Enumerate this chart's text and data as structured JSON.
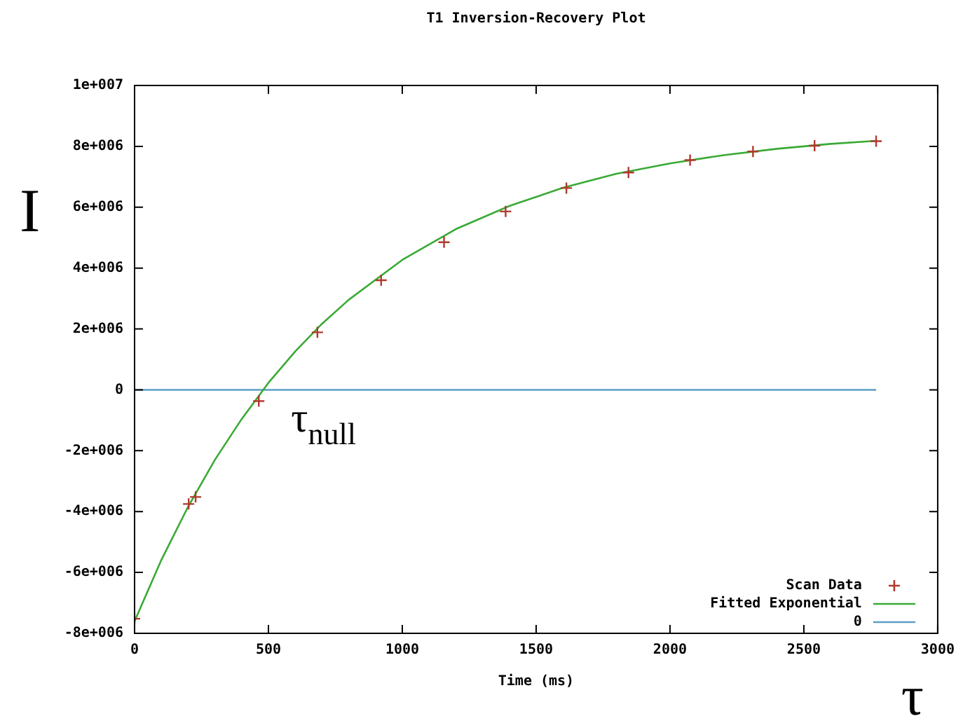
{
  "chart_data": {
    "type": "scatter",
    "title": "T1 Inversion-Recovery Plot",
    "xlabel": "Time (ms)",
    "ylabel": "I",
    "xlim": [
      0,
      3000
    ],
    "xticks": [
      0,
      500,
      1000,
      1500,
      2000,
      2500,
      3000
    ],
    "ylim": [
      -8000000,
      10000000
    ],
    "yticks": [
      {
        "value": -8000000,
        "label": "-8e+006"
      },
      {
        "value": -6000000,
        "label": "-6e+006"
      },
      {
        "value": -4000000,
        "label": "-4e+006"
      },
      {
        "value": -2000000,
        "label": "-2e+006"
      },
      0,
      {
        "value": 2000000,
        "label": "2e+006"
      },
      {
        "value": 4000000,
        "label": "4e+006"
      },
      {
        "value": 6000000,
        "label": "6e+006"
      },
      {
        "value": 8000000,
        "label": "8e+006"
      },
      {
        "value": 10000000,
        "label": "1e+007"
      }
    ],
    "grid": false,
    "legend": "bottom right",
    "series": [
      {
        "name": "Scan Data",
        "marker": "cross",
        "color": "#b03a2e",
        "x": [
          0,
          202,
          228,
          464,
          683,
          921,
          1156,
          1386,
          1613,
          1845,
          2075,
          2310,
          2540,
          2770
        ],
        "values": [
          -7520000,
          -3750000,
          -3520000,
          -370000,
          1890000,
          3600000,
          4850000,
          5860000,
          6630000,
          7140000,
          7550000,
          7830000,
          8020000,
          8170000
        ]
      },
      {
        "name": "Fitted Exponential",
        "type": "line",
        "marker": "none",
        "color": "#3aaa35",
        "x": [
          0,
          100,
          200,
          300,
          400,
          500,
          600,
          700,
          800,
          1000,
          1200,
          1400,
          1600,
          1800,
          2000,
          2200,
          2400,
          2600,
          2770
        ],
        "values": [
          -7600000,
          -5590000,
          -3840000,
          -2300000,
          -960000,
          230000,
          1260000,
          2170000,
          2960000,
          4270000,
          5280000,
          6040000,
          6640000,
          7100000,
          7440000,
          7710000,
          7920000,
          8080000,
          8180000
        ]
      },
      {
        "name": "0",
        "type": "line",
        "marker": "none",
        "color": "#5b9fc6",
        "x": [
          0,
          2770
        ],
        "values": [
          0,
          0
        ]
      }
    ],
    "annotations": [
      {
        "text": "τ$_{null}$",
        "x": 480,
        "y": 0
      },
      "τ"
    ]
  }
}
